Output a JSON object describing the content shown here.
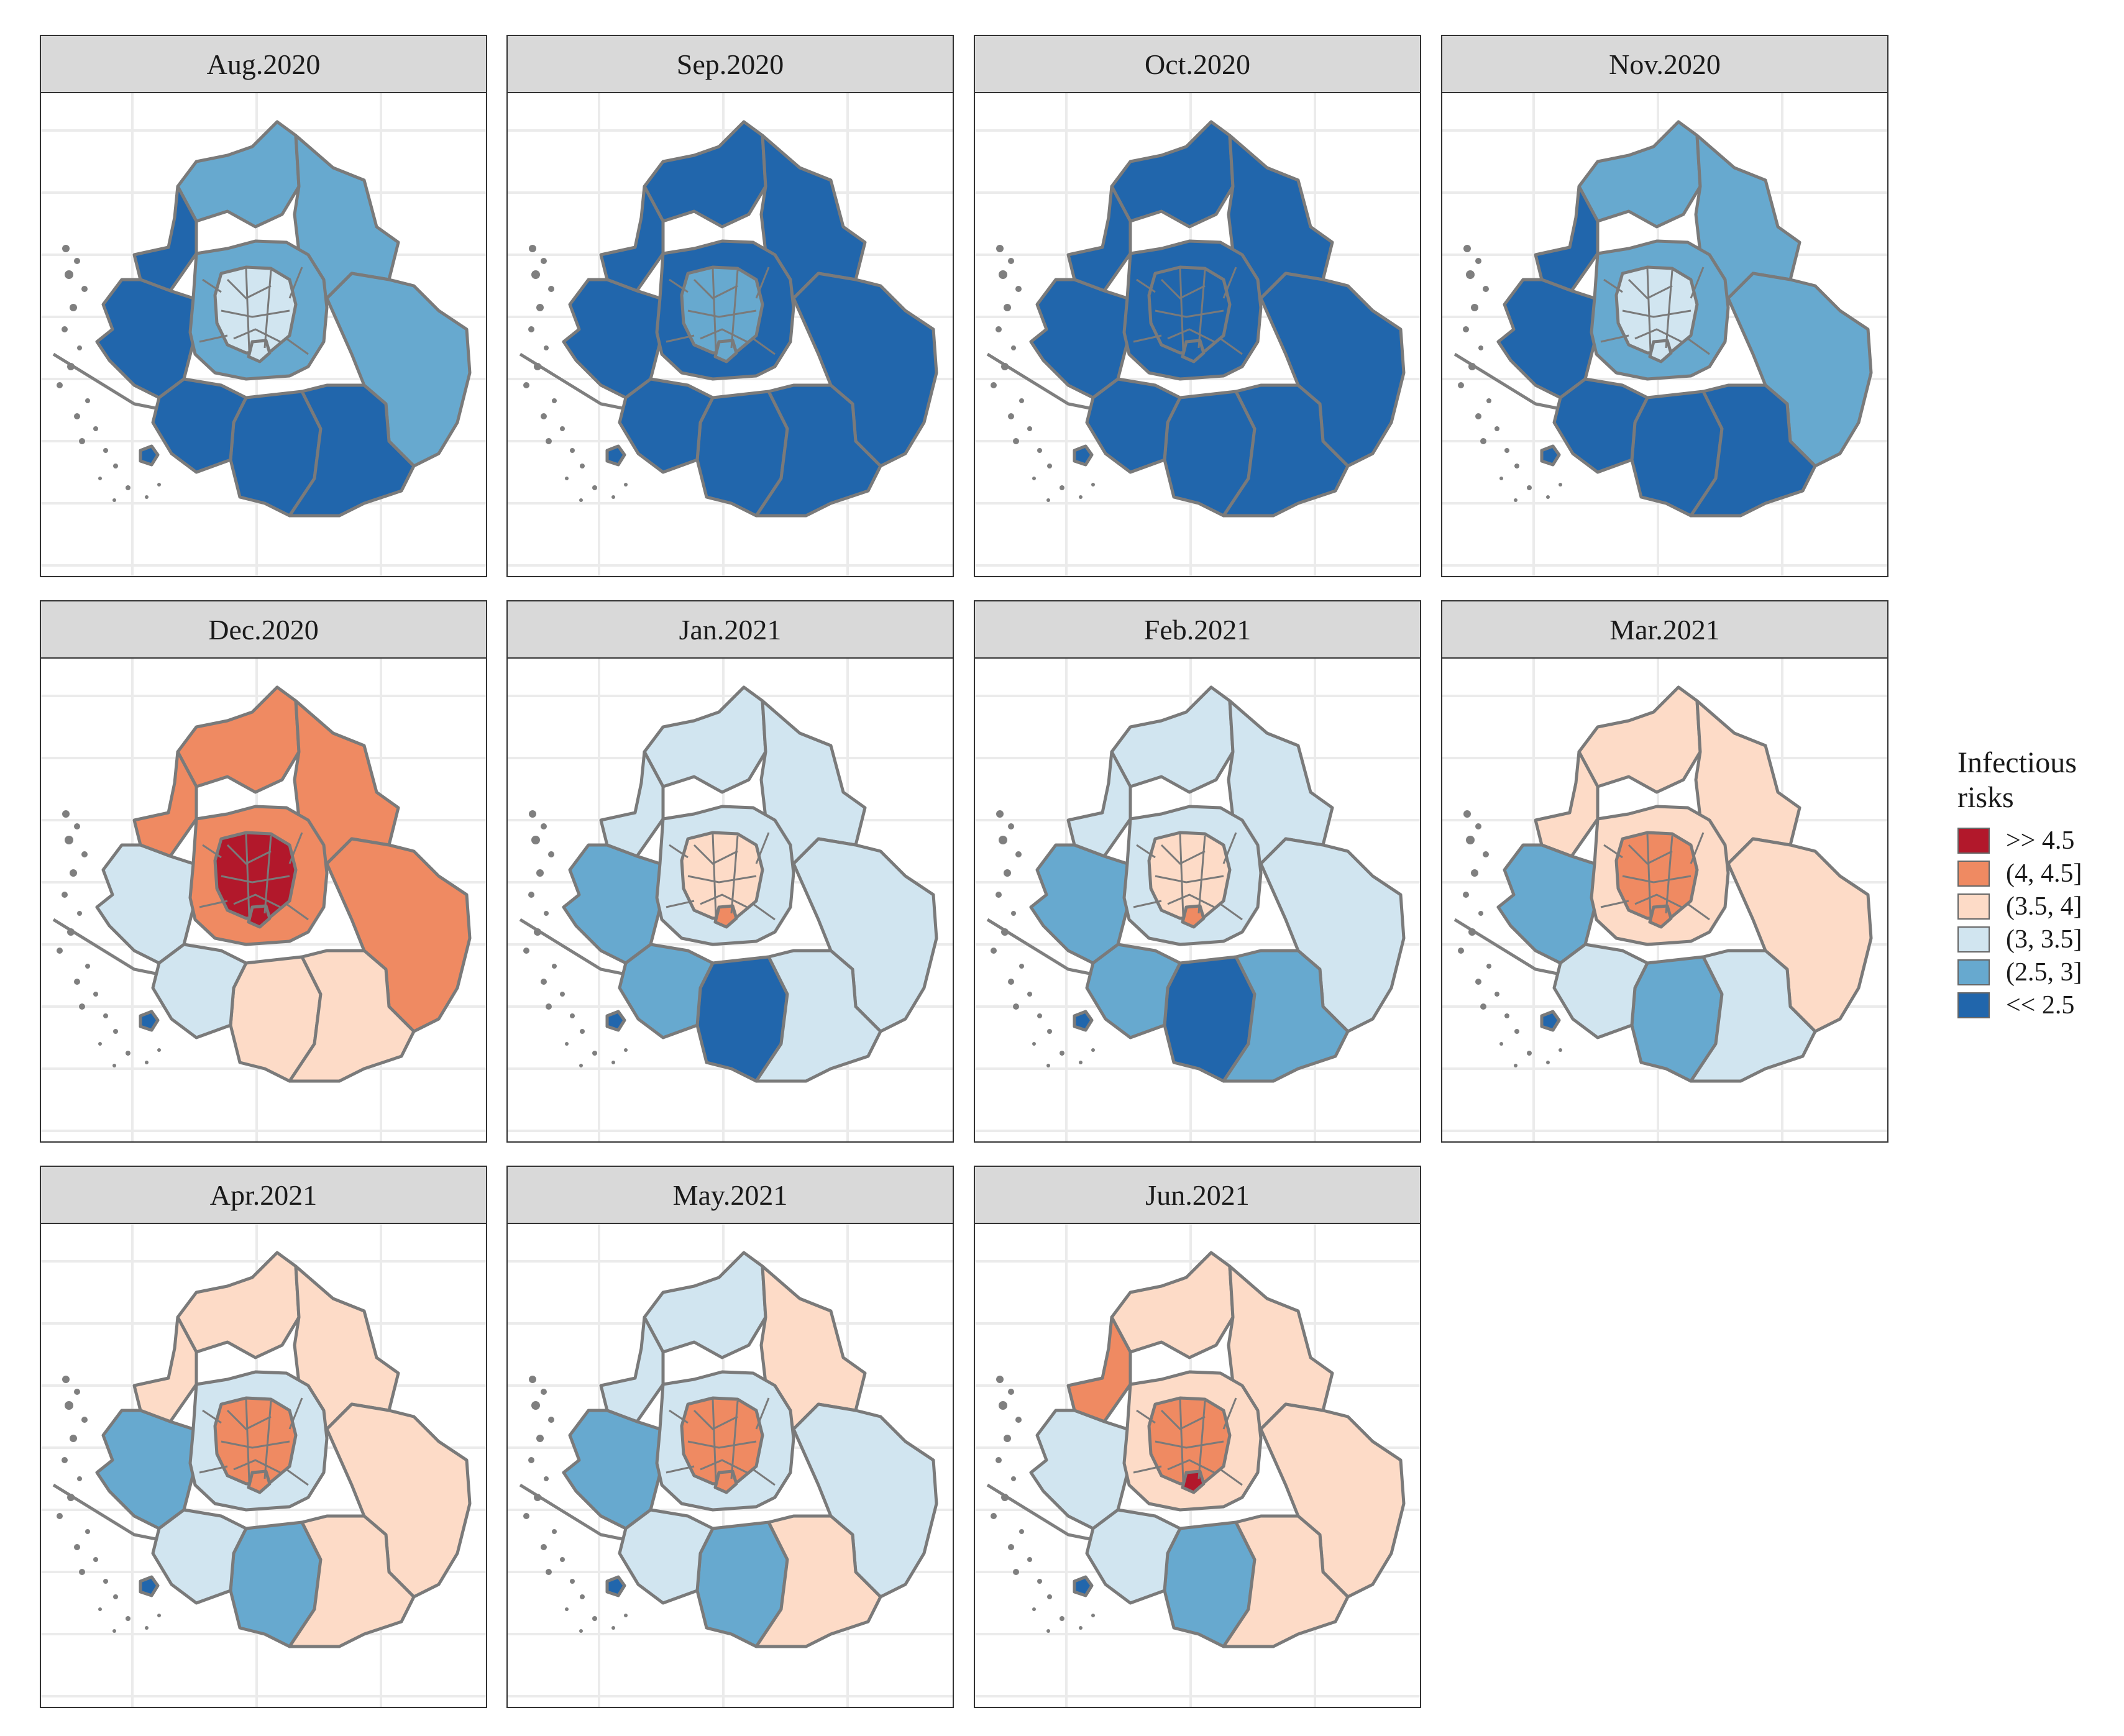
{
  "legend": {
    "title_line1": "Infectious",
    "title_line2": "risks",
    "classes": [
      {
        "label": ">> 4.5",
        "color": "#b2182b"
      },
      {
        "label": "(4, 4.5]",
        "color": "#ef8a62"
      },
      {
        "label": "(3.5, 4]",
        "color": "#fddbc7"
      },
      {
        "label": "(3, 3.5]",
        "color": "#d1e5f0"
      },
      {
        "label": "(2.5, 3]",
        "color": "#67a9cf"
      },
      {
        "label": "<< 2.5",
        "color": "#2166ac"
      }
    ]
  },
  "panels": [
    {
      "title": "Aug.2020",
      "risk": {
        "north": 4,
        "northwest": 5,
        "northeast": 4,
        "west": 5,
        "east": 4,
        "south": 5,
        "southwest": 5,
        "southeast": 5,
        "center": 3,
        "ring": 4,
        "hotspot": 3,
        "island": 5
      }
    },
    {
      "title": "Sep.2020",
      "risk": {
        "north": 5,
        "northwest": 5,
        "northeast": 5,
        "west": 5,
        "east": 5,
        "south": 5,
        "southwest": 5,
        "southeast": 5,
        "center": 4,
        "ring": 5,
        "hotspot": 4,
        "island": 5
      }
    },
    {
      "title": "Oct.2020",
      "risk": {
        "north": 5,
        "northwest": 5,
        "northeast": 5,
        "west": 5,
        "east": 5,
        "south": 5,
        "southwest": 5,
        "southeast": 5,
        "center": 5,
        "ring": 5,
        "hotspot": 5,
        "island": 5
      }
    },
    {
      "title": "Nov.2020",
      "risk": {
        "north": 4,
        "northwest": 5,
        "northeast": 4,
        "west": 5,
        "east": 4,
        "south": 5,
        "southwest": 5,
        "southeast": 5,
        "center": 3,
        "ring": 4,
        "hotspot": 3,
        "island": 5
      }
    },
    {
      "title": "Dec.2020",
      "risk": {
        "north": 1,
        "northwest": 1,
        "northeast": 1,
        "west": 3,
        "east": 1,
        "south": 2,
        "southwest": 3,
        "southeast": 2,
        "center": 0,
        "ring": 1,
        "hotspot": 0,
        "island": 5
      }
    },
    {
      "title": "Jan.2021",
      "risk": {
        "north": 3,
        "northwest": 3,
        "northeast": 3,
        "west": 4,
        "east": 3,
        "south": 5,
        "southwest": 4,
        "southeast": 3,
        "center": 2,
        "ring": 3,
        "hotspot": 1,
        "island": 5
      }
    },
    {
      "title": "Feb.2021",
      "risk": {
        "north": 3,
        "northwest": 3,
        "northeast": 3,
        "west": 4,
        "east": 3,
        "south": 5,
        "southwest": 4,
        "southeast": 4,
        "center": 2,
        "ring": 3,
        "hotspot": 1,
        "island": 5
      }
    },
    {
      "title": "Mar.2021",
      "risk": {
        "north": 2,
        "northwest": 2,
        "northeast": 2,
        "west": 4,
        "east": 2,
        "south": 4,
        "southwest": 3,
        "southeast": 3,
        "center": 1,
        "ring": 2,
        "hotspot": 1,
        "island": 5
      }
    },
    {
      "title": "Apr.2021",
      "risk": {
        "north": 2,
        "northwest": 2,
        "northeast": 2,
        "west": 4,
        "east": 2,
        "south": 4,
        "southwest": 3,
        "southeast": 2,
        "center": 1,
        "ring": 3,
        "hotspot": 1,
        "island": 5
      }
    },
    {
      "title": "May.2021",
      "risk": {
        "north": 3,
        "northwest": 3,
        "northeast": 2,
        "west": 4,
        "east": 3,
        "south": 4,
        "southwest": 3,
        "southeast": 2,
        "center": 1,
        "ring": 3,
        "hotspot": 1,
        "island": 5
      }
    },
    {
      "title": "Jun.2021",
      "risk": {
        "north": 2,
        "northwest": 1,
        "northeast": 2,
        "west": 3,
        "east": 2,
        "south": 4,
        "southwest": 3,
        "southeast": 2,
        "center": 1,
        "ring": 2,
        "hotspot": 0,
        "island": 5
      }
    }
  ]
}
